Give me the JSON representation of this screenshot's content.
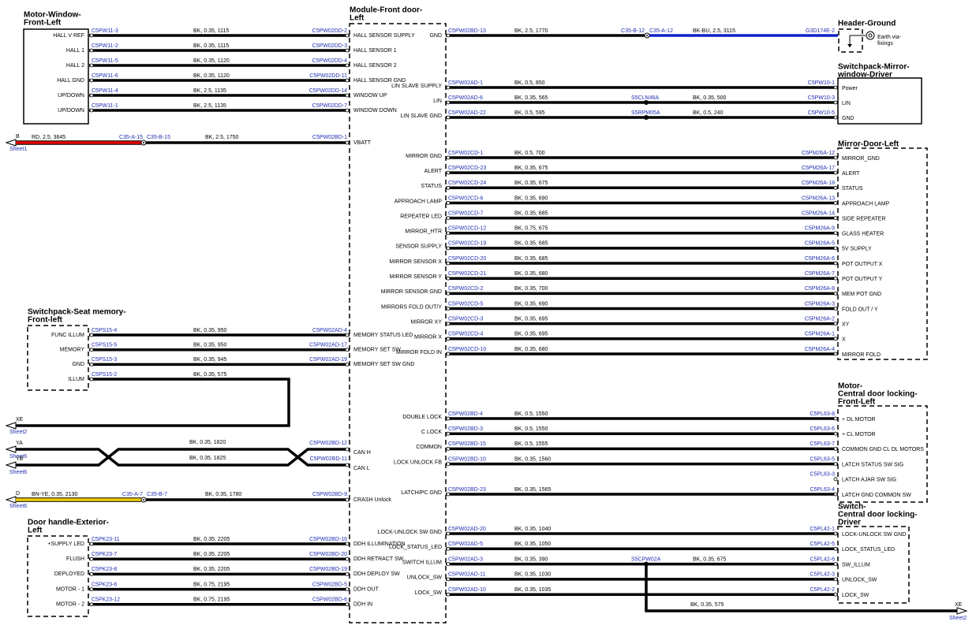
{
  "module": {
    "title": [
      "Module-Front door-",
      "Left"
    ]
  },
  "motor_window": {
    "title": [
      "Motor-Window-",
      "Front-Left"
    ],
    "wires": [
      {
        "pin": "HALL V REF",
        "from": "C5PW11-3",
        "spec": "BK, 0.35, 1115",
        "to": "C5PW02DD-2",
        "module_pin": "HALL SENSOR SUPPLY"
      },
      {
        "pin": "HALL 1",
        "from": "C5PW11-2",
        "spec": "BK, 0.35, 1115",
        "to": "C5PW02DD-3",
        "module_pin": "HALL SENSOR 1"
      },
      {
        "pin": "HALL 2",
        "from": "C5PW11-5",
        "spec": "BK, 0.35, 1120",
        "to": "C5PW02DD-4",
        "module_pin": "HALL SENSOR 2"
      },
      {
        "pin": "HALL GND",
        "from": "C5PW11-6",
        "spec": "BK, 0.35, 1120",
        "to": "C5PW02DD-11",
        "module_pin": "HALL SENSOR GND"
      },
      {
        "pin": "UP/DOWN",
        "from": "C5PW11-4",
        "spec": "BK, 2.5, 1135",
        "to": "C5PW02DD-14",
        "module_pin": "WINDOW UP"
      },
      {
        "pin": "UP/DOWN",
        "from": "C5PW11-1",
        "spec": "BK, 2.5, 1135",
        "to": "C5PW02DD-7",
        "module_pin": "WINDOW DOWN"
      }
    ]
  },
  "vbatt": {
    "ref": "B",
    "sheet": "Sheet1",
    "spec": "RD, 2.5, 3645",
    "connector_a": "C35-A-15",
    "connector_b": "C35-B-15",
    "spec_2": "BK, 2.5, 1750",
    "to": "C5PW02BD-1",
    "module_pin": "VBATT"
  },
  "seat_memory": {
    "title": [
      "Switchpack-Seat memory-",
      "Front-left"
    ],
    "wires": [
      {
        "pin": "FUNC ILLUM",
        "from": "C5PS15-4",
        "spec": "BK, 0.35, 950",
        "to": "C5PW02AD-4",
        "module_pin": "MEMORY STATUS LED"
      },
      {
        "pin": "MEMORY",
        "from": "C5PS15-5",
        "spec": "BK, 0.35, 950",
        "to": "C5PW02AD-17",
        "module_pin": "MEMORY SET SW"
      },
      {
        "pin": "GND",
        "from": "C5PS15-3",
        "spec": "BK, 0.35, 945",
        "to": "C5PW02AD-19",
        "module_pin": "MEMORY SET SW GND"
      },
      {
        "pin": "ILLUM",
        "from": "C5PS15-2",
        "spec": "BK, 0.35, 575"
      }
    ],
    "exit": {
      "ref": "XE",
      "sheet": "Sheet2"
    }
  },
  "can": [
    {
      "ref": "YA",
      "sheet": "Sheet6",
      "spec": "BK, 0.35, 1820",
      "to": "C5PW02BD-12",
      "module_pin": "CAN H"
    },
    {
      "ref": "YB",
      "sheet": "Sheet6",
      "spec": "BK, 0.35, 1825",
      "to": "C5PW02BD-11",
      "module_pin": "CAN L"
    }
  ],
  "crash": {
    "ref": "D",
    "sheet": "Sheet6",
    "spec": "BN-YE, 0.35, 2130",
    "connector_a": "C35-A-7",
    "connector_b": "C35-B-7",
    "spec_2": "BK, 0.35, 1780",
    "to": "C5PW02BD-9",
    "module_pin": "CRASH Unlock"
  },
  "door_handle": {
    "title": [
      "Door handle-Exterior-",
      "Left"
    ],
    "wires": [
      {
        "pin": "+SUPPLY LED",
        "from": "C5PK23-11",
        "spec": "BK, 0.35, 2205",
        "to": "C5PW02BD-16",
        "module_pin": "DDH ILLUMINATION"
      },
      {
        "pin": "FLUSH",
        "from": "C5PK23-7",
        "spec": "BK, 0.35, 2205",
        "to": "C5PW02BD-20",
        "module_pin": "DDH RETRACT SW"
      },
      {
        "pin": "DEPLOYED",
        "from": "C5PK23-8",
        "spec": "BK, 0.35, 2205",
        "to": "C5PW02BD-19",
        "module_pin": "DDH DEPLOY SW"
      },
      {
        "pin": "MOTOR - 1",
        "from": "C5PK23-6",
        "spec": "BK, 0.75, 2195",
        "to": "C5PW02BD-5",
        "module_pin": "DDH OUT"
      },
      {
        "pin": "MOTOR - 2",
        "from": "C5PK23-12",
        "spec": "BK, 0.75, 2195",
        "to": "C5PW02BD-6",
        "module_pin": "DDH IN"
      }
    ]
  },
  "header_ground": {
    "title": [
      "Header-Ground"
    ],
    "note": [
      "Earth via-",
      "fixings"
    ],
    "wire": {
      "module_pin": "GND",
      "from": "C5PW02BD-13",
      "spec": "BK, 2.5, 1770",
      "connector_a": "C35-B-12",
      "connector_b": "C35-A-12",
      "spec_2": "BK-BU, 2.5, 3115",
      "to": "G3D174E-2"
    }
  },
  "mirror_switch": {
    "title": [
      "Switchpack-Mirror-",
      "window-Driver"
    ],
    "wires": [
      {
        "module_pin": "LIN SLAVE SUPPLY",
        "from": "C5PW02AD-1",
        "spec": "BK, 0.5, 850",
        "to": "C5PW10-1",
        "pin": "Power"
      },
      {
        "module_pin": "LIN",
        "from": "C5PW02AD-6",
        "spec": "BK, 0.35, 565",
        "splice": "S5CLN46A",
        "spec_2": "BK, 0.35, 500",
        "to": "C5PW10-3",
        "pin": "LIN"
      },
      {
        "module_pin": "LIN SLAVE GND",
        "from": "C5PW02AD-22",
        "spec": "BK, 0.5, 595",
        "splice": "S5RPM05A",
        "spec_2": "BK, 0.5, 240",
        "to": "C5PW10-5",
        "pin": "GND"
      }
    ]
  },
  "mirror": {
    "title": [
      "Mirror-Door-Left"
    ],
    "wires": [
      {
        "module_pin": "MIRROR GND",
        "from": "C5PW02CD-1",
        "spec": "BK, 0.5, 700",
        "to": "C5PM26A-12",
        "pin": "MIRROR_GND"
      },
      {
        "module_pin": "ALERT",
        "from": "C5PW02CD-23",
        "spec": "BK, 0.35, 675",
        "to": "C5PM26A-17",
        "pin": "ALERT"
      },
      {
        "module_pin": "STATUS",
        "from": "C5PW02CD-24",
        "spec": "BK, 0.35, 675",
        "to": "C5PM26A-18",
        "pin": "STATUS"
      },
      {
        "module_pin": "APPROACH LAMP",
        "from": "C5PW02CD-6",
        "spec": "BK, 0.35, 690",
        "to": "C5PM26A-13",
        "pin": "APPROACH LAMP"
      },
      {
        "module_pin": "REPEATER LED",
        "from": "C5PW02CD-7",
        "spec": "BK, 0.35, 685",
        "to": "C5PM26A-14",
        "pin": "SIDE REPEATER"
      },
      {
        "module_pin": "MIRROR_HTR",
        "from": "C5PW02CD-12",
        "spec": "BK, 0.75, 675",
        "to": "C5PM26A-9",
        "pin": "GLASS HEATER"
      },
      {
        "module_pin": "SENSOR SUPPLY",
        "from": "C5PW02CD-19",
        "spec": "BK, 0.35, 685",
        "to": "C5PM26A-5",
        "pin": "5V SUPPLY"
      },
      {
        "module_pin": "MIRROR SENSOR X",
        "from": "C5PW02CD-20",
        "spec": "BK, 0.35, 685",
        "to": "C5PM26A-6",
        "pin": "POT OUTPUT X"
      },
      {
        "module_pin": "MIRROR SENSOR Y",
        "from": "C5PW02CD-21",
        "spec": "BK, 0.35, 680",
        "to": "C5PM26A-7",
        "pin": "POT OUTPUT Y"
      },
      {
        "module_pin": "MIRROR SENSOR GND",
        "from": "C5PW02CD-2",
        "spec": "BK, 0.35, 700",
        "to": "C5PM26A-8",
        "pin": "MEM POT GND"
      },
      {
        "module_pin": "MIRRORS FOLD OUT/Y",
        "from": "C5PW02CD-5",
        "spec": "BK, 0.35, 690",
        "to": "C5PM26A-3",
        "pin": "FOLD OUT / Y"
      },
      {
        "module_pin": "MIRROR XY",
        "from": "C5PW02CD-3",
        "spec": "BK, 0.35, 695",
        "to": "C5PM26A-2",
        "pin": "XY"
      },
      {
        "module_pin": "MIRROR X",
        "from": "C5PW02CD-4",
        "spec": "BK, 0.35, 695",
        "to": "C5PM26A-1",
        "pin": "X"
      },
      {
        "module_pin": "MIRROR FOLD IN",
        "from": "C5PW02CD-10",
        "spec": "BK, 0.35, 680",
        "to": "C5PM26A-4",
        "pin": "MIRROR FOLD"
      }
    ]
  },
  "lock_motor": {
    "title": [
      "Motor-",
      "Central door locking-",
      "Front-Left"
    ],
    "wires": [
      {
        "module_pin": "DOUBLE LOCK",
        "from": "C5PW02BD-4",
        "spec": "BK, 0.5, 1550",
        "to": "C5PL63-8",
        "pin": "+ DL MOTOR"
      },
      {
        "module_pin": "C LOCK",
        "from": "C5PW02BD-3",
        "spec": "BK, 0.5, 1550",
        "to": "C5PL63-6",
        "pin": "+ CL MOTOR"
      },
      {
        "module_pin": "COMMON",
        "from": "C5PW02BD-15",
        "spec": "BK, 0.5, 1555",
        "to": "C5PL63-7",
        "pin": "COMMON GND CL DL MOTORS"
      },
      {
        "module_pin": "LOCK UNLOCK FB",
        "from": "C5PW02BD-10",
        "spec": "BK, 0.35, 1560",
        "to": "C5PL63-5",
        "pin": "LATCH STATUS SW SIG"
      },
      {
        "to": "C5PL63-3",
        "pin": "LATCH AJAR SW SIG"
      },
      {
        "module_pin": "LATCH/PC GND",
        "from": "C5PW02BD-23",
        "spec": "BK, 0.35, 1565",
        "to": "C5PL63-4",
        "pin": "LATCH GND COMMON SW"
      }
    ]
  },
  "lock_switch": {
    "title": [
      "Switch-",
      "Central door locking-",
      "Driver"
    ],
    "wires": [
      {
        "module_pin": "LOCK-UNLOCK SW GND",
        "from": "C5PW02AD-20",
        "spec": "BK, 0.35, 1040",
        "to": "C5PL42-1",
        "pin": "LOCK-UNLOCK SW GND"
      },
      {
        "module_pin": "LOCK_STATUS_LED",
        "from": "C5PW02AD-5",
        "spec": "BK, 0.35, 1050",
        "to": "C5PL42-5",
        "pin": "LOCK_STATUS_LED"
      },
      {
        "module_pin": "SWITCH ILLUM",
        "from": "C5PW02AD-3",
        "spec": "BK, 0.35, 390",
        "splice": "S5CPW02A",
        "spec_2": "BK, 0.35, 675",
        "to": "C5PL42-6",
        "pin": "SW_ILLUM"
      },
      {
        "module_pin": "UNLOCK_SW",
        "from": "C5PW02AD-11",
        "spec": "BK, 0.35, 1030",
        "to": "C5PL42-3",
        "pin": "UNLOCK_SW"
      },
      {
        "module_pin": "LOCK_SW",
        "from": "C5PW02AD-10",
        "spec": "BK, 0.35, 1035",
        "to": "C5PL42-2",
        "pin": "LOCK_SW"
      }
    ],
    "exit": {
      "spec": "BK, 0.35, 575",
      "ref": "XE",
      "sheet": "Sheet2"
    }
  }
}
